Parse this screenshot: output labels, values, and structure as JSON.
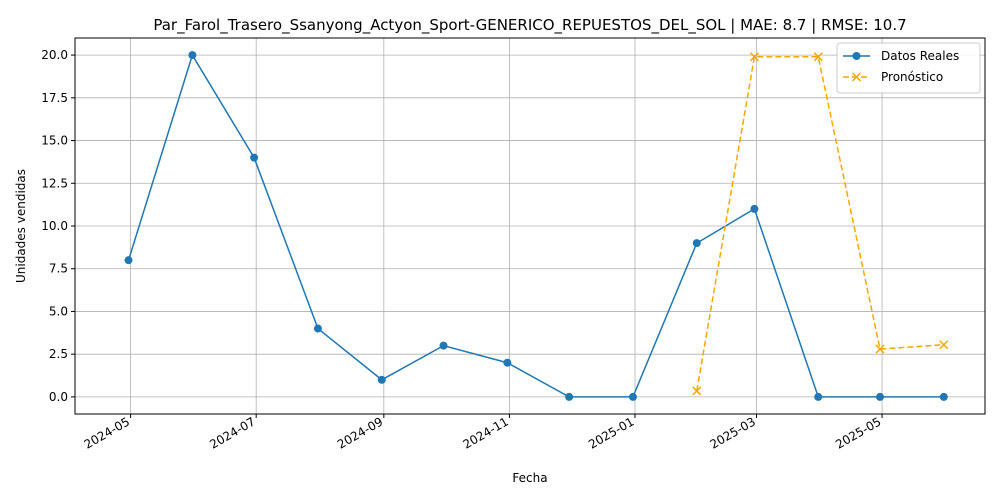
{
  "chart_data": {
    "type": "line",
    "title": "Par_Farol_Trasero_Ssanyong_Actyon_Sport-GENERICO_REPUESTOS_DEL_SOL | MAE: 8.7 | RMSE: 10.7",
    "xlabel": "Fecha",
    "ylabel": "Unidades vendidas",
    "xlim": [
      "2024-04-04",
      "2025-06-20"
    ],
    "ylim": [
      -1.0,
      21.0
    ],
    "x_ticks": [
      "2024-05",
      "2024-07",
      "2024-09",
      "2024-11",
      "2025-01",
      "2025-03",
      "2025-05"
    ],
    "x_tick_dates": [
      "2024-05-01",
      "2024-07-01",
      "2024-09-01",
      "2024-11-01",
      "2025-01-01",
      "2025-03-01",
      "2025-05-01"
    ],
    "y_ticks": [
      "0.0",
      "2.5",
      "5.0",
      "7.5",
      "10.0",
      "12.5",
      "15.0",
      "17.5",
      "20.0"
    ],
    "y_tick_values": [
      0,
      2.5,
      5,
      7.5,
      10,
      12.5,
      15,
      17.5,
      20
    ],
    "grid": true,
    "legend_position": "top-right",
    "series": [
      {
        "name": "Datos Reales",
        "color": "#1f77b4",
        "style": "solid",
        "marker": "circle",
        "x": [
          "2024-04-30",
          "2024-05-31",
          "2024-06-30",
          "2024-07-31",
          "2024-08-31",
          "2024-09-30",
          "2024-10-31",
          "2024-11-30",
          "2024-12-31",
          "2025-01-31",
          "2025-02-28",
          "2025-03-31",
          "2025-04-30",
          "2025-05-31"
        ],
        "values": [
          8,
          20,
          14,
          4,
          1,
          3,
          2,
          0,
          0,
          9,
          11,
          0,
          0,
          0
        ]
      },
      {
        "name": "Pronóstico",
        "color": "#ffa500",
        "style": "dashed",
        "marker": "x",
        "x": [
          "2025-01-31",
          "2025-02-28",
          "2025-03-31",
          "2025-04-30",
          "2025-05-31"
        ],
        "values": [
          0.35,
          19.9,
          19.9,
          2.8,
          3.05
        ]
      }
    ]
  }
}
